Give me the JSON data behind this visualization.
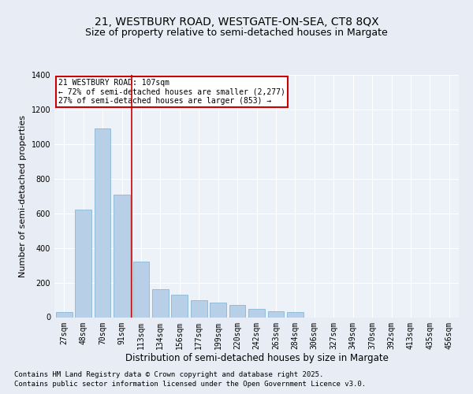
{
  "title_line1": "21, WESTBURY ROAD, WESTGATE-ON-SEA, CT8 8QX",
  "title_line2": "Size of property relative to semi-detached houses in Margate",
  "xlabel": "Distribution of semi-detached houses by size in Margate",
  "ylabel": "Number of semi-detached properties",
  "categories": [
    "27sqm",
    "48sqm",
    "70sqm",
    "91sqm",
    "113sqm",
    "134sqm",
    "156sqm",
    "177sqm",
    "199sqm",
    "220sqm",
    "242sqm",
    "263sqm",
    "284sqm",
    "306sqm",
    "327sqm",
    "349sqm",
    "370sqm",
    "392sqm",
    "413sqm",
    "435sqm",
    "456sqm"
  ],
  "values": [
    28,
    620,
    1090,
    710,
    320,
    160,
    130,
    100,
    85,
    70,
    50,
    35,
    30,
    0,
    0,
    0,
    0,
    0,
    0,
    0,
    0
  ],
  "bar_color": "#b8cfe8",
  "bar_edge_color": "#7aafd4",
  "vline_color": "#cc0000",
  "annotation_text": "21 WESTBURY ROAD: 107sqm\n← 72% of semi-detached houses are smaller (2,277)\n27% of semi-detached houses are larger (853) →",
  "annotation_box_color": "#ffffff",
  "annotation_box_edge": "#cc0000",
  "ylim": [
    0,
    1400
  ],
  "yticks": [
    0,
    200,
    400,
    600,
    800,
    1000,
    1200,
    1400
  ],
  "background_color": "#e8edf5",
  "plot_bg_color": "#edf1f8",
  "footer_line1": "Contains HM Land Registry data © Crown copyright and database right 2025.",
  "footer_line2": "Contains public sector information licensed under the Open Government Licence v3.0.",
  "grid_color": "#ffffff",
  "title_fontsize": 10,
  "subtitle_fontsize": 9,
  "tick_fontsize": 7,
  "xlabel_fontsize": 8.5,
  "ylabel_fontsize": 8,
  "footer_fontsize": 6.5,
  "annotation_fontsize": 7,
  "vline_pos": 3.5
}
